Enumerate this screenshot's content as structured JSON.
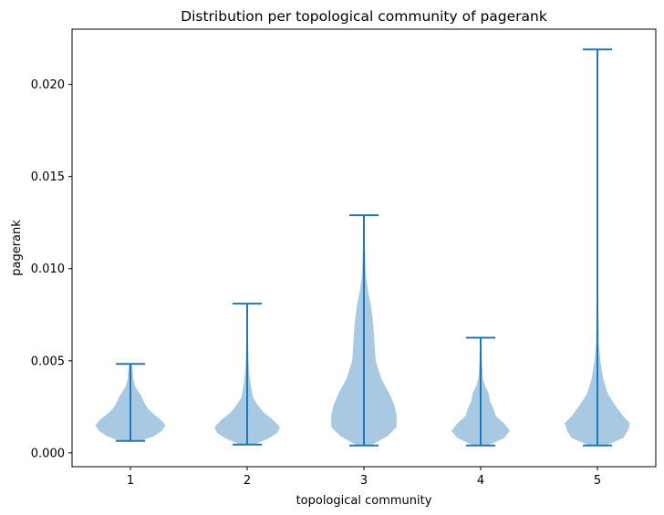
{
  "chart_data": {
    "type": "violin",
    "title": "Distribution per topological community of pagerank",
    "xlabel": "topological community",
    "ylabel": "pagerank",
    "categories": [
      "1",
      "2",
      "3",
      "4",
      "5"
    ],
    "xlim": [
      0.5,
      5.5
    ],
    "ylim": [
      -0.00075,
      0.023
    ],
    "yticks": [
      0.0,
      0.005,
      0.01,
      0.015,
      0.02
    ],
    "ytick_labels": [
      "0.000",
      "0.005",
      "0.010",
      "0.015",
      "0.020"
    ],
    "colors": {
      "body": "#a9c8e2",
      "line": "#1f77b4"
    },
    "body_opacity": 0.8,
    "violins": [
      {
        "category": "1",
        "min": 0.00065,
        "max": 0.00483,
        "profile": [
          [
            0.00065,
            0.09
          ],
          [
            0.0009,
            0.2
          ],
          [
            0.0012,
            0.27
          ],
          [
            0.0015,
            0.3
          ],
          [
            0.0018,
            0.26
          ],
          [
            0.0021,
            0.2
          ],
          [
            0.0024,
            0.15
          ],
          [
            0.0027,
            0.12
          ],
          [
            0.003,
            0.1
          ],
          [
            0.0033,
            0.07
          ],
          [
            0.0036,
            0.04
          ],
          [
            0.004,
            0.025
          ],
          [
            0.0044,
            0.02
          ],
          [
            0.00483,
            0.012
          ]
        ]
      },
      {
        "category": "2",
        "min": 0.00045,
        "max": 0.0081,
        "profile": [
          [
            0.00045,
            0.06
          ],
          [
            0.0008,
            0.19
          ],
          [
            0.0011,
            0.26
          ],
          [
            0.0014,
            0.28
          ],
          [
            0.0018,
            0.22
          ],
          [
            0.0022,
            0.14
          ],
          [
            0.0026,
            0.09
          ],
          [
            0.003,
            0.05
          ],
          [
            0.0035,
            0.035
          ],
          [
            0.0042,
            0.02
          ],
          [
            0.005,
            0.012
          ],
          [
            0.006,
            0.008
          ],
          [
            0.007,
            0.005
          ],
          [
            0.0081,
            0.004
          ]
        ]
      },
      {
        "category": "3",
        "min": 0.0004,
        "max": 0.0129,
        "profile": [
          [
            0.0004,
            0.06
          ],
          [
            0.0009,
            0.2
          ],
          [
            0.0014,
            0.28
          ],
          [
            0.002,
            0.28
          ],
          [
            0.0026,
            0.26
          ],
          [
            0.0032,
            0.22
          ],
          [
            0.004,
            0.15
          ],
          [
            0.005,
            0.1
          ],
          [
            0.006,
            0.09
          ],
          [
            0.007,
            0.08
          ],
          [
            0.008,
            0.06
          ],
          [
            0.0088,
            0.035
          ],
          [
            0.0095,
            0.02
          ],
          [
            0.0105,
            0.012
          ],
          [
            0.0115,
            0.008
          ],
          [
            0.0129,
            0.004
          ]
        ]
      },
      {
        "category": "4",
        "min": 0.0004,
        "max": 0.00625,
        "profile": [
          [
            0.0004,
            0.06
          ],
          [
            0.0008,
            0.2
          ],
          [
            0.0012,
            0.25
          ],
          [
            0.0016,
            0.2
          ],
          [
            0.002,
            0.13
          ],
          [
            0.0024,
            0.11
          ],
          [
            0.0028,
            0.08
          ],
          [
            0.0032,
            0.07
          ],
          [
            0.0036,
            0.04
          ],
          [
            0.004,
            0.02
          ],
          [
            0.0048,
            0.012
          ],
          [
            0.0056,
            0.008
          ],
          [
            0.00625,
            0.004
          ]
        ]
      },
      {
        "category": "5",
        "min": 0.0004,
        "max": 0.0219,
        "profile": [
          [
            0.0004,
            0.07
          ],
          [
            0.0008,
            0.22
          ],
          [
            0.0012,
            0.26
          ],
          [
            0.0016,
            0.28
          ],
          [
            0.002,
            0.22
          ],
          [
            0.0026,
            0.15
          ],
          [
            0.0032,
            0.09
          ],
          [
            0.004,
            0.05
          ],
          [
            0.005,
            0.025
          ],
          [
            0.006,
            0.012
          ],
          [
            0.008,
            0.008
          ],
          [
            0.012,
            0.005
          ],
          [
            0.017,
            0.004
          ],
          [
            0.0219,
            0.003
          ]
        ]
      }
    ]
  }
}
